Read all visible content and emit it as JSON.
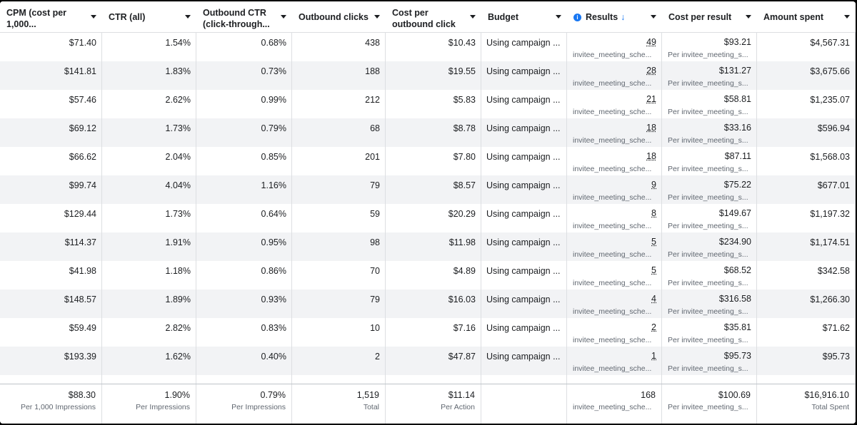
{
  "columns": [
    {
      "key": "cpm",
      "label": "CPM (cost per 1,000...",
      "sortable": true
    },
    {
      "key": "ctr",
      "label": "CTR (all)",
      "sortable": true
    },
    {
      "key": "outbound_ctr",
      "label": "Outbound CTR (click-through...",
      "sortable": true
    },
    {
      "key": "outbound_clicks",
      "label": "Outbound clicks",
      "sortable": true
    },
    {
      "key": "cost_per_outbound",
      "label": "Cost per outbound click",
      "sortable": true
    },
    {
      "key": "budget",
      "label": "Budget",
      "sortable": true
    },
    {
      "key": "results",
      "label": "Results",
      "sortable": true,
      "sorted": "desc",
      "sort_icon": "↓",
      "info_icon": "i"
    },
    {
      "key": "cost_per_result",
      "label": "Cost per result",
      "sortable": true
    },
    {
      "key": "amount_spent",
      "label": "Amount spent",
      "sortable": true
    }
  ],
  "rows": [
    {
      "cpm": "$71.40",
      "ctr": "1.54%",
      "outbound_ctr": "0.68%",
      "outbound_clicks": "438",
      "cost_per_outbound": "$10.43",
      "budget": "Using campaign ...",
      "results": "49",
      "results_sub": "invitee_meeting_sche...",
      "cost_per_result": "$93.21",
      "cpr_sub": "Per invitee_meeting_s...",
      "amount_spent": "$4,567.31"
    },
    {
      "cpm": "$141.81",
      "ctr": "1.83%",
      "outbound_ctr": "0.73%",
      "outbound_clicks": "188",
      "cost_per_outbound": "$19.55",
      "budget": "Using campaign ...",
      "results": "28",
      "results_sub": "invitee_meeting_sche...",
      "cost_per_result": "$131.27",
      "cpr_sub": "Per invitee_meeting_s...",
      "amount_spent": "$3,675.66"
    },
    {
      "cpm": "$57.46",
      "ctr": "2.62%",
      "outbound_ctr": "0.99%",
      "outbound_clicks": "212",
      "cost_per_outbound": "$5.83",
      "budget": "Using campaign ...",
      "results": "21",
      "results_sub": "invitee_meeting_sche...",
      "cost_per_result": "$58.81",
      "cpr_sub": "Per invitee_meeting_s...",
      "amount_spent": "$1,235.07"
    },
    {
      "cpm": "$69.12",
      "ctr": "1.73%",
      "outbound_ctr": "0.79%",
      "outbound_clicks": "68",
      "cost_per_outbound": "$8.78",
      "budget": "Using campaign ...",
      "results": "18",
      "results_sub": "invitee_meeting_sche...",
      "cost_per_result": "$33.16",
      "cpr_sub": "Per invitee_meeting_s...",
      "amount_spent": "$596.94"
    },
    {
      "cpm": "$66.62",
      "ctr": "2.04%",
      "outbound_ctr": "0.85%",
      "outbound_clicks": "201",
      "cost_per_outbound": "$7.80",
      "budget": "Using campaign ...",
      "results": "18",
      "results_sub": "invitee_meeting_sche...",
      "cost_per_result": "$87.11",
      "cpr_sub": "Per invitee_meeting_s...",
      "amount_spent": "$1,568.03"
    },
    {
      "cpm": "$99.74",
      "ctr": "4.04%",
      "outbound_ctr": "1.16%",
      "outbound_clicks": "79",
      "cost_per_outbound": "$8.57",
      "budget": "Using campaign ...",
      "results": "9",
      "results_sub": "invitee_meeting_sche...",
      "cost_per_result": "$75.22",
      "cpr_sub": "Per invitee_meeting_s...",
      "amount_spent": "$677.01"
    },
    {
      "cpm": "$129.44",
      "ctr": "1.73%",
      "outbound_ctr": "0.64%",
      "outbound_clicks": "59",
      "cost_per_outbound": "$20.29",
      "budget": "Using campaign ...",
      "results": "8",
      "results_sub": "invitee_meeting_sche...",
      "cost_per_result": "$149.67",
      "cpr_sub": "Per invitee_meeting_s...",
      "amount_spent": "$1,197.32"
    },
    {
      "cpm": "$114.37",
      "ctr": "1.91%",
      "outbound_ctr": "0.95%",
      "outbound_clicks": "98",
      "cost_per_outbound": "$11.98",
      "budget": "Using campaign ...",
      "results": "5",
      "results_sub": "invitee_meeting_sche...",
      "cost_per_result": "$234.90",
      "cpr_sub": "Per invitee_meeting_s...",
      "amount_spent": "$1,174.51"
    },
    {
      "cpm": "$41.98",
      "ctr": "1.18%",
      "outbound_ctr": "0.86%",
      "outbound_clicks": "70",
      "cost_per_outbound": "$4.89",
      "budget": "Using campaign ...",
      "results": "5",
      "results_sub": "invitee_meeting_sche...",
      "cost_per_result": "$68.52",
      "cpr_sub": "Per invitee_meeting_s...",
      "amount_spent": "$342.58"
    },
    {
      "cpm": "$148.57",
      "ctr": "1.89%",
      "outbound_ctr": "0.93%",
      "outbound_clicks": "79",
      "cost_per_outbound": "$16.03",
      "budget": "Using campaign ...",
      "results": "4",
      "results_sub": "invitee_meeting_sche...",
      "cost_per_result": "$316.58",
      "cpr_sub": "Per invitee_meeting_s...",
      "amount_spent": "$1,266.30"
    },
    {
      "cpm": "$59.49",
      "ctr": "2.82%",
      "outbound_ctr": "0.83%",
      "outbound_clicks": "10",
      "cost_per_outbound": "$7.16",
      "budget": "Using campaign ...",
      "results": "2",
      "results_sub": "invitee_meeting_sche...",
      "cost_per_result": "$35.81",
      "cpr_sub": "Per invitee_meeting_s...",
      "amount_spent": "$71.62"
    },
    {
      "cpm": "$193.39",
      "ctr": "1.62%",
      "outbound_ctr": "0.40%",
      "outbound_clicks": "2",
      "cost_per_outbound": "$47.87",
      "budget": "Using campaign ...",
      "results": "1",
      "results_sub": "invitee_meeting_sche...",
      "cost_per_result": "$95.73",
      "cpr_sub": "Per invitee_meeting_s...",
      "amount_spent": "$95.73"
    }
  ],
  "footer": {
    "cpm": {
      "value": "$88.30",
      "label": "Per 1,000 Impressions"
    },
    "ctr": {
      "value": "1.90%",
      "label": "Per Impressions"
    },
    "outbound_ctr": {
      "value": "0.79%",
      "label": "Per Impressions"
    },
    "outbound_clicks": {
      "value": "1,519",
      "label": "Total"
    },
    "cost_per_outbound": {
      "value": "$11.14",
      "label": "Per Action"
    },
    "budget": {
      "value": "",
      "label": ""
    },
    "results": {
      "value": "168",
      "label": "invitee_meeting_sche..."
    },
    "cost_per_result": {
      "value": "$100.69",
      "label": "Per invitee_meeting_s..."
    },
    "amount_spent": {
      "value": "$16,916.10",
      "label": "Total Spent"
    }
  },
  "colors": {
    "accent": "#1877f2",
    "row_alt": "#f2f3f5",
    "border": "#dddfe2",
    "muted": "#606770"
  }
}
